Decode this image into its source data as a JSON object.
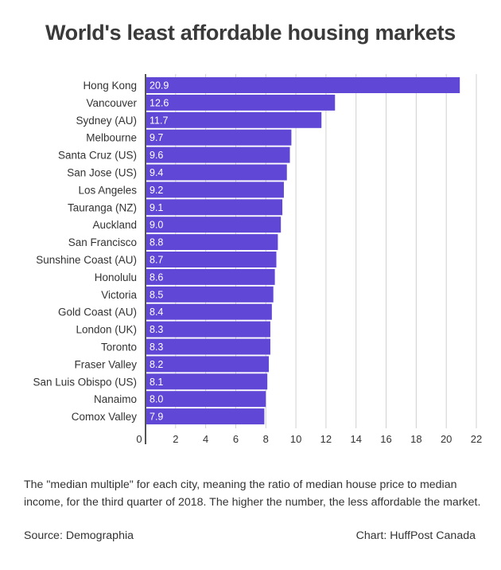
{
  "title": "World's least affordable housing markets",
  "note": "The \"median multiple\" for each city, meaning the ratio of median house price to median income, for the third quarter of 2018. The higher the number, the less affordable the market.",
  "source": "Source: Demographia",
  "credit": "Chart: HuffPost Canada",
  "colors": {
    "bar": "#6147d6",
    "grid": "#d0d0d0",
    "axis": "#555555"
  },
  "chart_data": {
    "type": "bar",
    "orientation": "horizontal",
    "title": "World's least affordable housing markets",
    "categories": [
      "Hong Kong",
      "Vancouver",
      "Sydney (AU)",
      "Melbourne",
      "Santa Cruz (US)",
      "San Jose (US)",
      "Los Angeles",
      "Tauranga (NZ)",
      "Auckland",
      "San Francisco",
      "Sunshine Coast (AU)",
      "Honolulu",
      "Victoria",
      "Gold Coast (AU)",
      "London (UK)",
      "Toronto",
      "Fraser Valley",
      "San Luis Obispo (US)",
      "Nanaimo",
      "Comox Valley"
    ],
    "values": [
      20.9,
      12.6,
      11.7,
      9.7,
      9.6,
      9.4,
      9.2,
      9.1,
      9.0,
      8.8,
      8.7,
      8.6,
      8.5,
      8.4,
      8.3,
      8.3,
      8.2,
      8.1,
      8.0,
      7.9
    ],
    "value_labels": [
      "20.9",
      "12.6",
      "11.7",
      "9.7",
      "9.6",
      "9.4",
      "9.2",
      "9.1",
      "9.0",
      "8.8",
      "8.7",
      "8.6",
      "8.5",
      "8.4",
      "8.3",
      "8.3",
      "8.2",
      "8.1",
      "8.0",
      "7.9"
    ],
    "xlim": [
      0,
      22
    ],
    "xticks": [
      0,
      2,
      4,
      6,
      8,
      10,
      12,
      14,
      16,
      18,
      20,
      22
    ],
    "xlabel": "",
    "ylabel": "",
    "grid": true
  }
}
